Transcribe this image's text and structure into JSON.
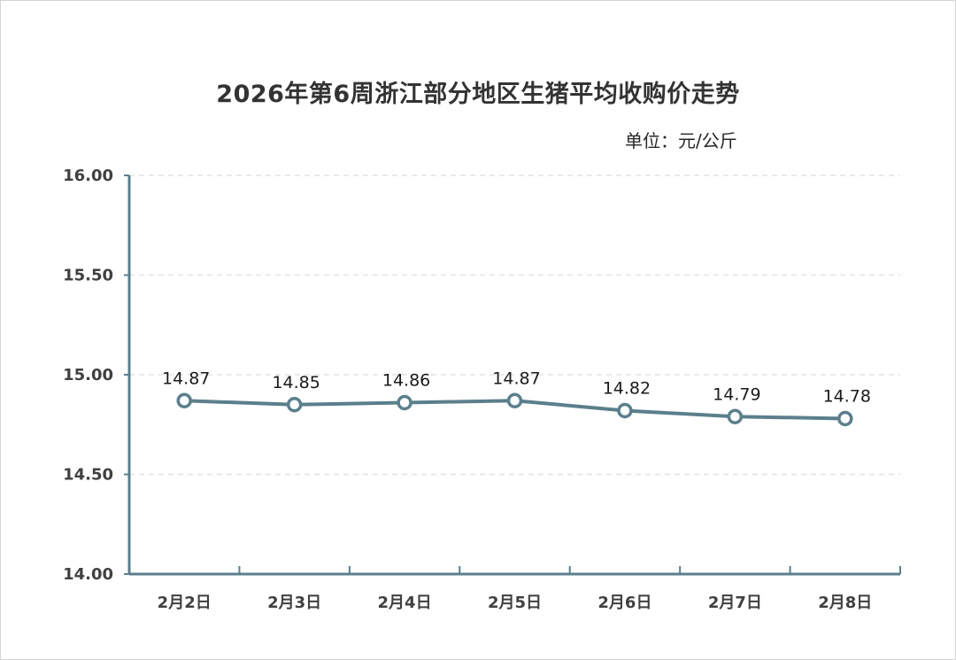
{
  "title": "2026年第6周浙江部分地区生猪平均收购价走势",
  "unit_label": "单位：元/公斤",
  "chart_data": {
    "type": "line",
    "title": "2026年第6周浙江部分地区生猪平均收购价走势",
    "xlabel": "",
    "ylabel": "",
    "categories": [
      "2月2日",
      "2月3日",
      "2月4日",
      "2月5日",
      "2月6日",
      "2月7日",
      "2月8日"
    ],
    "series": [
      {
        "values": [
          14.87,
          14.85,
          14.86,
          14.87,
          14.82,
          14.79,
          14.78
        ]
      }
    ],
    "data_labels": [
      "14.87",
      "14.85",
      "14.86",
      "14.87",
      "14.82",
      "14.79",
      "14.78"
    ],
    "ylim": [
      14.0,
      16.0
    ],
    "yticks": [
      "14.00",
      "14.50",
      "15.00",
      "15.50",
      "16.00"
    ],
    "ytick_values": [
      14.0,
      14.5,
      15.0,
      15.5,
      16.0
    ],
    "grid": "horizontal dashed",
    "legend": "none",
    "colors": {
      "line": "#5b7f8c",
      "axis": "#5b7f8c",
      "grid": "#e3e3e3",
      "marker_fill": "#ffffff"
    }
  }
}
